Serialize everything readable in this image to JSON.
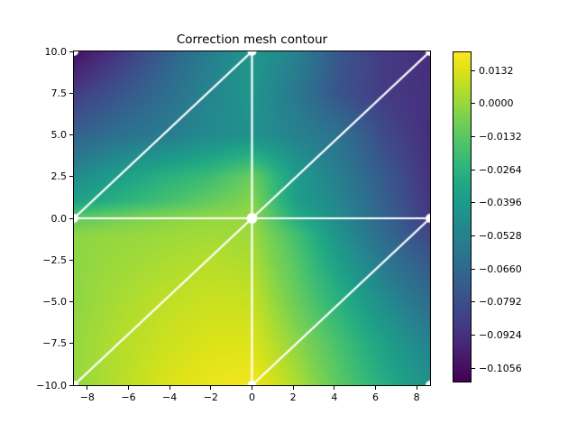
{
  "figure": {
    "background": "#ffffff"
  },
  "chart_data": {
    "type": "heatmap",
    "subtype": "triangulated-mesh-contour (tripcolor with white mesh overlay)",
    "title": "Correction mesh contour",
    "xlabel": "",
    "ylabel": "",
    "xlim": [
      -8.65,
      8.65
    ],
    "ylim": [
      -10,
      10
    ],
    "grid": false,
    "x_ticks": {
      "values": [
        -8,
        -6,
        -4,
        -2,
        0,
        2,
        4,
        6,
        8
      ],
      "labels": [
        "−8",
        "−6",
        "−4",
        "−2",
        "0",
        "2",
        "4",
        "6",
        "8"
      ]
    },
    "y_ticks": {
      "values": [
        10,
        7.5,
        5,
        2.5,
        0,
        -2.5,
        -5,
        -7.5,
        -10
      ],
      "labels": [
        "10.0",
        "7.5",
        "5.0",
        "2.5",
        "0.0",
        "−2.5",
        "−5.0",
        "−7.5",
        "−10.0"
      ]
    },
    "vmin": -0.111,
    "vmax": 0.0205,
    "colormap": {
      "name": "viridis",
      "stops": [
        [
          0.0,
          "#440154"
        ],
        [
          0.05,
          "#471265"
        ],
        [
          0.1,
          "#482475"
        ],
        [
          0.15,
          "#463480"
        ],
        [
          0.2,
          "#414487"
        ],
        [
          0.25,
          "#3b528b"
        ],
        [
          0.3,
          "#355f8d"
        ],
        [
          0.35,
          "#2f6c8e"
        ],
        [
          0.4,
          "#2a788e"
        ],
        [
          0.45,
          "#25848e"
        ],
        [
          0.5,
          "#21918c"
        ],
        [
          0.55,
          "#1e9c89"
        ],
        [
          0.6,
          "#22a884"
        ],
        [
          0.65,
          "#2fb47c"
        ],
        [
          0.7,
          "#44bf70"
        ],
        [
          0.75,
          "#5ec962"
        ],
        [
          0.8,
          "#7ad151"
        ],
        [
          0.85,
          "#9bd93c"
        ],
        [
          0.9,
          "#bddf26"
        ],
        [
          0.95,
          "#dfe318"
        ],
        [
          1.0,
          "#fde725"
        ]
      ]
    },
    "colorbar": {
      "position": "right",
      "tick_values": [
        0.0132,
        0.0,
        -0.0132,
        -0.0264,
        -0.0396,
        -0.0528,
        -0.066,
        -0.0792,
        -0.0924,
        -0.1056
      ],
      "tick_labels": [
        "0.0132",
        "0.0000",
        "−0.0132",
        "−0.0264",
        "−0.0396",
        "−0.0528",
        "−0.0660",
        "−0.0792",
        "−0.0924",
        "−0.1056"
      ]
    },
    "mesh": {
      "line_color": "#ffffff",
      "line_width": 2.2,
      "node_marker": "circle",
      "node_marker_radius": 5,
      "center_marker_radius": 6,
      "nodes": [
        [
          -8.65,
          -10
        ],
        [
          0,
          -10
        ],
        [
          8.65,
          -10
        ],
        [
          -8.65,
          0
        ],
        [
          0,
          0
        ],
        [
          8.65,
          0
        ],
        [
          -8.65,
          10
        ],
        [
          0,
          10
        ],
        [
          8.65,
          10
        ]
      ],
      "edges": [
        [
          3,
          4
        ],
        [
          4,
          5
        ],
        [
          1,
          4
        ],
        [
          4,
          7
        ],
        [
          3,
          7
        ],
        [
          4,
          8
        ],
        [
          0,
          4
        ],
        [
          1,
          5
        ]
      ]
    },
    "field_grid": {
      "x": [
        -8.65,
        -6.49,
        -4.33,
        -2.16,
        0,
        2.16,
        4.33,
        6.49,
        8.65
      ],
      "y": [
        10,
        7.5,
        5,
        2.5,
        1,
        0,
        -1,
        -2.5,
        -5,
        -7.5,
        -10
      ],
      "values": [
        [
          -0.1057,
          -0.0913,
          -0.0729,
          -0.0558,
          -0.0413,
          -0.0531,
          -0.0768,
          -0.0886,
          -0.0939
        ],
        [
          -0.0886,
          -0.0768,
          -0.065,
          -0.0518,
          -0.0426,
          -0.0584,
          -0.0781,
          -0.0886,
          -0.0932
        ],
        [
          -0.0702,
          -0.0623,
          -0.0571,
          -0.0492,
          -0.0453,
          -0.0531,
          -0.0623,
          -0.0821,
          -0.0939
        ],
        [
          -0.0492,
          -0.0374,
          -0.0282,
          -0.0216,
          -0.0097,
          -0.0387,
          -0.0558,
          -0.0742,
          -0.0926
        ],
        [
          -0.0347,
          -0.0268,
          -0.019,
          -0.0111,
          -0.0032,
          -0.0374,
          -0.0518,
          -0.0716,
          -0.0913
        ],
        [
          -0.0124,
          -0.0071,
          -0.0032,
          -0.0006,
          -0.0006,
          -0.0295,
          -0.0492,
          -0.0689,
          -0.0893
        ],
        [
          -0.0019,
          -0.0006,
          0.0008,
          0.0021,
          0.0014,
          -0.019,
          -0.0453,
          -0.0663,
          -0.0834
        ],
        [
          -0.0019,
          0.0008,
          0.0034,
          0.006,
          0.0041,
          -0.015,
          -0.0387,
          -0.0597,
          -0.0755
        ],
        [
          -0.0019,
          0.0034,
          0.0074,
          0.01,
          0.0093,
          -0.0097,
          -0.0282,
          -0.0479,
          -0.065
        ],
        [
          -0.0006,
          0.0054,
          0.01,
          0.0133,
          0.0139,
          -0.0019,
          -0.019,
          -0.0367,
          -0.0531
        ],
        [
          -0.0006,
          0.006,
          0.0126,
          0.0166,
          0.0185,
          0.0047,
          -0.0137,
          -0.0295,
          -0.0453
        ]
      ]
    }
  }
}
